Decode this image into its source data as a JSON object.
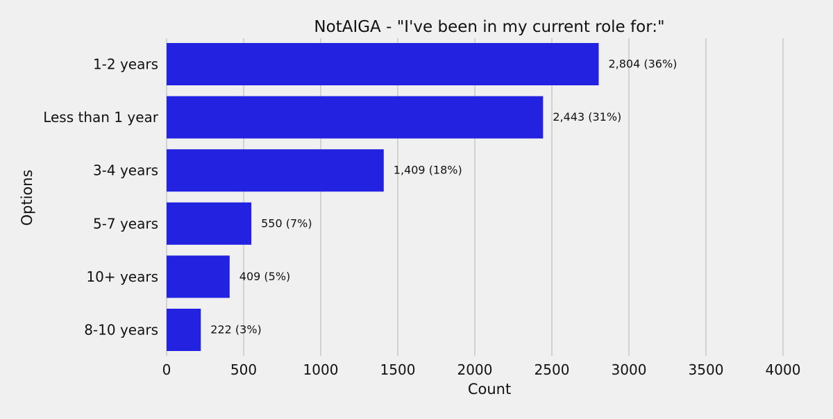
{
  "chart_data": {
    "type": "bar",
    "orientation": "horizontal",
    "title": "NotAIGA - \"I've been in my current role for:\"",
    "xlabel": "Count",
    "ylabel": "Options",
    "xlim": [
      0,
      4000
    ],
    "xticks": [
      0,
      500,
      1000,
      1500,
      2000,
      2500,
      3000,
      3500,
      4000
    ],
    "grid": "vertical",
    "categories": [
      "1-2 years",
      "Less than 1 year",
      "3-4 years",
      "5-7 years",
      "10+ years",
      "8-10 years"
    ],
    "values": [
      2804,
      2443,
      1409,
      550,
      409,
      222
    ],
    "data_labels": [
      "2,804 (36%)",
      "2,443 (31%)",
      "1,409 (18%)",
      "550 (7%)",
      "409 (5%)",
      "222 (3%)"
    ],
    "bar_color": "#2222e0",
    "background_color": "#f0f0f0",
    "grid_color": "#cbcbcb"
  }
}
